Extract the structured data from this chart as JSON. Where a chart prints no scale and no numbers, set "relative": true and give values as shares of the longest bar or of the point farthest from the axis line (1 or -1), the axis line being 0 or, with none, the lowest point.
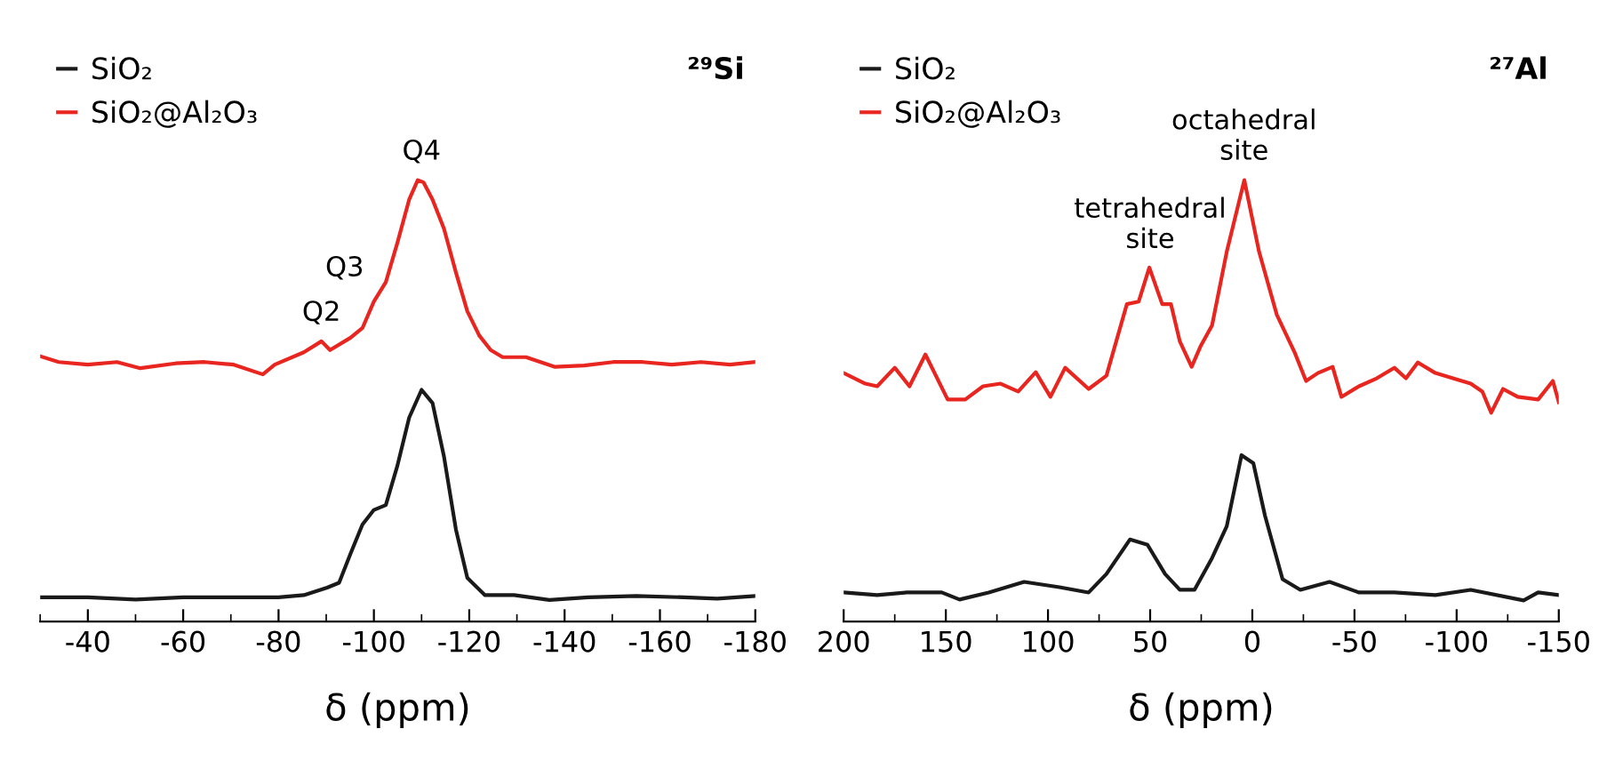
{
  "chart_data": [
    {
      "type": "line",
      "relative": true,
      "xlabel": "δ (ppm)",
      "xlim": [
        -30,
        -180
      ],
      "xticks": [
        -40,
        -60,
        -80,
        -100,
        -120,
        -140,
        -160,
        -180
      ],
      "grid": false,
      "legend": "top left",
      "marker": "none",
      "line_style": "solid",
      "annotations": [
        "²⁹Si",
        {
          "text": "Q4",
          "x": -110,
          "y": 1.0
        },
        {
          "text": "Q3",
          "x": -100,
          "y": 0.725
        },
        {
          "text": "Q2",
          "x": -89,
          "y": 0.635
        }
      ],
      "series": [
        {
          "name": "SiO₂",
          "color": "#1a1a1a",
          "x": [
            -30,
            -40,
            -50,
            -60,
            -70,
            -80,
            -85.3,
            -90.2,
            -92.7,
            -95.1,
            -97.6,
            -100,
            -102.5,
            -104.9,
            -107.4,
            -110,
            -112.3,
            -114.7,
            -117.2,
            -119.6,
            -123.3,
            -129.4,
            -136.8,
            -145,
            -155,
            -165,
            -172,
            -180
          ],
          "values": [
            0.055,
            0.055,
            0.05,
            0.055,
            0.055,
            0.055,
            0.06,
            0.077,
            0.088,
            0.154,
            0.22,
            0.253,
            0.264,
            0.352,
            0.462,
            0.525,
            0.495,
            0.374,
            0.209,
            0.099,
            0.06,
            0.06,
            0.049,
            0.055,
            0.058,
            0.055,
            0.052,
            0.058
          ]
        },
        {
          "name": "SiO₂@Al₂O₃",
          "color": "#e8251f",
          "x": [
            -30,
            -33.9,
            -40,
            -46.1,
            -51,
            -58.4,
            -64.5,
            -70.6,
            -76.7,
            -79.2,
            -85.3,
            -89,
            -90.8,
            -95.1,
            -97.6,
            -100,
            -102.5,
            -104.9,
            -107.4,
            -109.2,
            -110.4,
            -112.3,
            -114.7,
            -117.2,
            -119.6,
            -122.1,
            -124.5,
            -127,
            -131.9,
            -138,
            -144.1,
            -150.2,
            -156.4,
            -162.5,
            -168.6,
            -174.7,
            -180
          ],
          "values": [
            0.601,
            0.588,
            0.582,
            0.588,
            0.574,
            0.585,
            0.588,
            0.582,
            0.56,
            0.582,
            0.61,
            0.635,
            0.615,
            0.643,
            0.665,
            0.725,
            0.769,
            0.857,
            0.956,
            1.0,
            0.995,
            0.956,
            0.89,
            0.791,
            0.703,
            0.648,
            0.615,
            0.599,
            0.599,
            0.577,
            0.58,
            0.588,
            0.588,
            0.582,
            0.588,
            0.582,
            0.588
          ]
        }
      ]
    },
    {
      "type": "line",
      "relative": true,
      "xlabel": "δ (ppm)",
      "xlim": [
        200,
        -150
      ],
      "xticks": [
        200,
        150,
        100,
        50,
        0,
        -50,
        -100,
        -150
      ],
      "grid": false,
      "legend": "top left",
      "marker": "none",
      "line_style": "solid",
      "annotations": [
        "²⁷Al",
        {
          "text": "tetrahedral\nsite",
          "x": 50,
          "y": 0.8
        },
        {
          "text": "octahedral\nsite",
          "x": 4,
          "y": 1.0
        }
      ],
      "series": [
        {
          "name": "SiO₂",
          "color": "#1a1a1a",
          "x": [
            200,
            183.6,
            169.2,
            152,
            143.3,
            129,
            111.7,
            94.4,
            80.1,
            71.4,
            59.9,
            51.3,
            42.7,
            35.5,
            28.3,
            19.7,
            12.5,
            5.3,
            -0.5,
            -6.2,
            -14.8,
            -23.5,
            -37.8,
            -52.2,
            -69.5,
            -89.6,
            -106.9,
            -132.8,
            -139.9,
            -150
          ],
          "values": [
            0.066,
            0.06,
            0.066,
            0.066,
            0.05,
            0.066,
            0.09,
            0.078,
            0.066,
            0.108,
            0.186,
            0.174,
            0.108,
            0.072,
            0.072,
            0.144,
            0.216,
            0.377,
            0.359,
            0.24,
            0.096,
            0.072,
            0.09,
            0.066,
            0.066,
            0.06,
            0.072,
            0.048,
            0.066,
            0.06
          ]
        },
        {
          "name": "SiO₂@Al₂O₃",
          "color": "#e8251f",
          "x": [
            200,
            189.4,
            183.6,
            175,
            167.8,
            160,
            149.1,
            140.5,
            131.8,
            123.2,
            114.6,
            106,
            98.8,
            91.6,
            80.1,
            71.4,
            61.4,
            55.6,
            50.4,
            44.1,
            39.8,
            35.5,
            29.7,
            25.4,
            19.7,
            12.5,
            3.9,
            -3.3,
            -12,
            -20.6,
            -26.3,
            -32.1,
            -39.3,
            -43.6,
            -52.2,
            -60.9,
            -69.5,
            -75.2,
            -81,
            -89.6,
            -98.2,
            -106.9,
            -112.6,
            -116.9,
            -122.7,
            -129.9,
            -139.9,
            -147.1,
            -150
          ],
          "values": [
            0.563,
            0.539,
            0.533,
            0.575,
            0.533,
            0.605,
            0.503,
            0.503,
            0.533,
            0.539,
            0.521,
            0.565,
            0.509,
            0.575,
            0.527,
            0.557,
            0.719,
            0.725,
            0.802,
            0.719,
            0.719,
            0.635,
            0.577,
            0.623,
            0.671,
            0.838,
            1.0,
            0.838,
            0.695,
            0.611,
            0.545,
            0.563,
            0.577,
            0.509,
            0.533,
            0.551,
            0.575,
            0.551,
            0.587,
            0.563,
            0.551,
            0.539,
            0.521,
            0.473,
            0.527,
            0.509,
            0.503,
            0.545,
            0.497
          ]
        }
      ]
    }
  ]
}
